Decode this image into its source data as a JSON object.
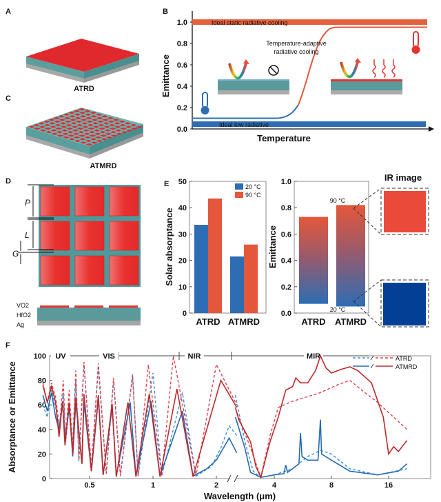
{
  "panels": {
    "A": {
      "letter": "A",
      "caption": "ATRD"
    },
    "C": {
      "letter": "C",
      "caption": "ATMRD"
    },
    "D": {
      "letter": "D",
      "dims": [
        "P",
        "L",
        "G"
      ],
      "layers": [
        "VO2",
        "HfO2",
        "Ag"
      ]
    },
    "B": {
      "letter": "B"
    },
    "E": {
      "letter": "E",
      "ir_title": "IR image"
    },
    "F": {
      "letter": "F"
    }
  },
  "colors": {
    "teal": "#4e9a9a",
    "red": "#e8322f",
    "gray": "#a0a0a0",
    "blue": "#2e6db4",
    "orange": "#e4573a",
    "dark_red": "#c0282b"
  },
  "chart_data": [
    {
      "id": "B",
      "type": "line",
      "xlabel": "Temperature",
      "ylabel": "Emittance",
      "ylim": [
        0,
        1.0
      ],
      "yticks": [
        "0.0",
        "0.2",
        "0.4",
        "0.6",
        "0.8",
        "1.0"
      ],
      "annotations": {
        "static": "Ideal static radiative cooling",
        "low": "Ideal low radiative",
        "adaptive_1": "Temperature-adaptive",
        "adaptive_2": "radiative cooling"
      },
      "levels": {
        "static": 1.0,
        "low": 0.04,
        "adaptive_low": 0.1,
        "adaptive_high": 0.95
      }
    },
    {
      "id": "E-left",
      "type": "bar",
      "categories": [
        "ATRD",
        "ATMRD"
      ],
      "series": [
        {
          "name": "20 °C",
          "values": [
            33.5,
            21.5
          ],
          "color": "#2e6db4"
        },
        {
          "name": "90 °C",
          "values": [
            43.5,
            26
          ],
          "color": "#e4573a"
        }
      ],
      "ylabel": "Solar absorptance",
      "ylim": [
        0,
        50
      ],
      "yticks": [
        "0",
        "10",
        "20",
        "30",
        "40",
        "50"
      ],
      "legend": "top-right"
    },
    {
      "id": "E-right",
      "type": "bar",
      "categories": [
        "ATRD",
        "ATMRD"
      ],
      "low": [
        0.07,
        0.05
      ],
      "high": [
        0.73,
        0.82
      ],
      "ylabel": "Emittance",
      "ylim": [
        0,
        1.0
      ],
      "yticks": [
        "0.0",
        "0.2",
        "0.4",
        "0.6",
        "0.8",
        "1.0"
      ],
      "annotations": {
        "hot": "90 °C",
        "cold": "20 °C"
      }
    },
    {
      "id": "F",
      "type": "line",
      "xlabel": "Wavelength (μm)",
      "ylabel": "Absorptance or Emittance",
      "ylim": [
        0,
        100
      ],
      "yticks": [
        "0",
        "20",
        "40",
        "60",
        "80",
        "100"
      ],
      "xticks": [
        "0.5",
        "1",
        "2",
        "4",
        "8",
        "16"
      ],
      "xscale": "log, broken axis at 2.5 μm",
      "regions": [
        "UV",
        "VIS",
        "NIR",
        "MIR"
      ],
      "legend": "top-right",
      "legend_labels": [
        "ATRD",
        "ATMRD"
      ],
      "series": [
        {
          "name": "ATRD",
          "temp": "20 °C",
          "style": "dashed",
          "color": "#3a8fd6",
          "left": [
            [
              0.3,
              60
            ],
            [
              0.315,
              50
            ],
            [
              0.33,
              72
            ],
            [
              0.345,
              58
            ],
            [
              0.36,
              40
            ],
            [
              0.375,
              70
            ],
            [
              0.385,
              30
            ],
            [
              0.4,
              60
            ],
            [
              0.415,
              22
            ],
            [
              0.43,
              80
            ],
            [
              0.445,
              14
            ],
            [
              0.47,
              93
            ],
            [
              0.51,
              8
            ],
            [
              0.55,
              90
            ],
            [
              0.6,
              4
            ],
            [
              0.65,
              80
            ],
            [
              0.7,
              2
            ],
            [
              0.8,
              85
            ],
            [
              0.85,
              2
            ],
            [
              1.0,
              86
            ],
            [
              1.1,
              2
            ],
            [
              1.38,
              70
            ],
            [
              1.6,
              2
            ],
            [
              1.9,
              10
            ],
            [
              2.1,
              25
            ],
            [
              2.3,
              43
            ],
            [
              2.5,
              35
            ]
          ],
          "right": [
            [
              2.5,
              68
            ],
            [
              2.8,
              30
            ],
            [
              3.1,
              6
            ],
            [
              3.4,
              1
            ],
            [
              4,
              3
            ],
            [
              5,
              8
            ],
            [
              6,
              18
            ],
            [
              7,
              23
            ],
            [
              8,
              20
            ],
            [
              10,
              8
            ],
            [
              14,
              3
            ],
            [
              20,
              8
            ]
          ]
        },
        {
          "name": "ATRD",
          "temp": "90 °C",
          "style": "dashed",
          "color": "#e0404a",
          "left": [
            [
              0.3,
              78
            ],
            [
              0.315,
              62
            ],
            [
              0.33,
              78
            ],
            [
              0.345,
              66
            ],
            [
              0.36,
              42
            ],
            [
              0.375,
              80
            ],
            [
              0.385,
              33
            ],
            [
              0.4,
              72
            ],
            [
              0.415,
              25
            ],
            [
              0.43,
              88
            ],
            [
              0.445,
              15
            ],
            [
              0.47,
              95
            ],
            [
              0.51,
              8
            ],
            [
              0.55,
              94
            ],
            [
              0.6,
              4
            ],
            [
              0.65,
              82
            ],
            [
              0.7,
              2
            ],
            [
              0.8,
              84
            ],
            [
              0.85,
              2
            ],
            [
              0.95,
              93
            ],
            [
              1.1,
              2
            ],
            [
              1.25,
              100
            ],
            [
              1.6,
              2
            ],
            [
              2.0,
              93
            ],
            [
              2.5,
              60
            ]
          ],
          "right": [
            [
              2.5,
              57
            ],
            [
              3.0,
              25
            ],
            [
              3.4,
              1
            ],
            [
              3.8,
              35
            ],
            [
              4.2,
              58
            ],
            [
              5,
              63
            ],
            [
              7,
              70
            ],
            [
              8.5,
              76
            ],
            [
              10,
              80
            ],
            [
              12,
              70
            ],
            [
              14,
              62
            ],
            [
              17,
              50
            ],
            [
              20,
              40
            ]
          ]
        },
        {
          "name": "ATMRD",
          "temp": "20 °C",
          "style": "solid",
          "color": "#2569b0",
          "left": [
            [
              0.3,
              68
            ],
            [
              0.315,
              55
            ],
            [
              0.33,
              70
            ],
            [
              0.345,
              50
            ],
            [
              0.358,
              40
            ],
            [
              0.372,
              62
            ],
            [
              0.382,
              30
            ],
            [
              0.4,
              58
            ],
            [
              0.416,
              18
            ],
            [
              0.43,
              62
            ],
            [
              0.46,
              12
            ],
            [
              0.47,
              62
            ],
            [
              0.51,
              6
            ],
            [
              0.55,
              65
            ],
            [
              0.58,
              3
            ],
            [
              0.64,
              58
            ],
            [
              0.67,
              2
            ],
            [
              0.78,
              62
            ],
            [
              0.83,
              2
            ],
            [
              0.98,
              63
            ],
            [
              1.08,
              2
            ],
            [
              1.38,
              55
            ],
            [
              1.55,
              2
            ],
            [
              1.8,
              8
            ],
            [
              2.0,
              15
            ],
            [
              2.3,
              33
            ],
            [
              2.5,
              21
            ]
          ],
          "right": [
            [
              2.5,
              50
            ],
            [
              2.8,
              25
            ],
            [
              3.0,
              5
            ],
            [
              3.4,
              1
            ],
            [
              4,
              3
            ],
            [
              4.5,
              4
            ],
            [
              4.6,
              11
            ],
            [
              4.7,
              5
            ],
            [
              5.4,
              12
            ],
            [
              5.5,
              37
            ],
            [
              5.6,
              18
            ],
            [
              6,
              15
            ],
            [
              6.8,
              15
            ],
            [
              7.0,
              48
            ],
            [
              7.1,
              20
            ],
            [
              8,
              15
            ],
            [
              10,
              6
            ],
            [
              14,
              3
            ],
            [
              18,
              6
            ],
            [
              20,
              12
            ]
          ]
        },
        {
          "name": "ATMRD",
          "temp": "90 °C",
          "style": "solid",
          "color": "#c0282b",
          "left": [
            [
              0.3,
              76
            ],
            [
              0.315,
              62
            ],
            [
              0.33,
              75
            ],
            [
              0.345,
              62
            ],
            [
              0.358,
              34
            ],
            [
              0.372,
              63
            ],
            [
              0.382,
              27
            ],
            [
              0.4,
              62
            ],
            [
              0.416,
              20
            ],
            [
              0.43,
              66
            ],
            [
              0.46,
              12
            ],
            [
              0.47,
              69
            ],
            [
              0.51,
              6
            ],
            [
              0.55,
              68
            ],
            [
              0.58,
              3
            ],
            [
              0.64,
              61
            ],
            [
              0.67,
              1.5
            ],
            [
              0.76,
              62
            ],
            [
              0.83,
              1.5
            ],
            [
              0.96,
              69
            ],
            [
              1.08,
              1.5
            ],
            [
              1.3,
              73
            ],
            [
              1.55,
              1.5
            ],
            [
              2.1,
              80
            ],
            [
              2.5,
              58
            ]
          ],
          "right": [
            [
              2.5,
              58
            ],
            [
              2.6,
              48
            ],
            [
              3.0,
              30
            ],
            [
              3.2,
              10
            ],
            [
              3.4,
              1
            ],
            [
              3.8,
              30
            ],
            [
              4.2,
              50
            ],
            [
              4.6,
              72
            ],
            [
              5.0,
              75
            ],
            [
              5.2,
              82
            ],
            [
              5.5,
              78
            ],
            [
              6.0,
              78
            ],
            [
              6.6,
              88
            ],
            [
              7.0,
              100
            ],
            [
              7.5,
              90
            ],
            [
              8,
              86
            ],
            [
              9,
              89
            ],
            [
              10,
              91
            ],
            [
              11,
              88
            ],
            [
              13,
              78
            ],
            [
              15,
              50
            ],
            [
              16,
              20
            ],
            [
              17,
              26
            ],
            [
              18,
              22
            ],
            [
              20,
              31
            ]
          ]
        }
      ]
    }
  ]
}
